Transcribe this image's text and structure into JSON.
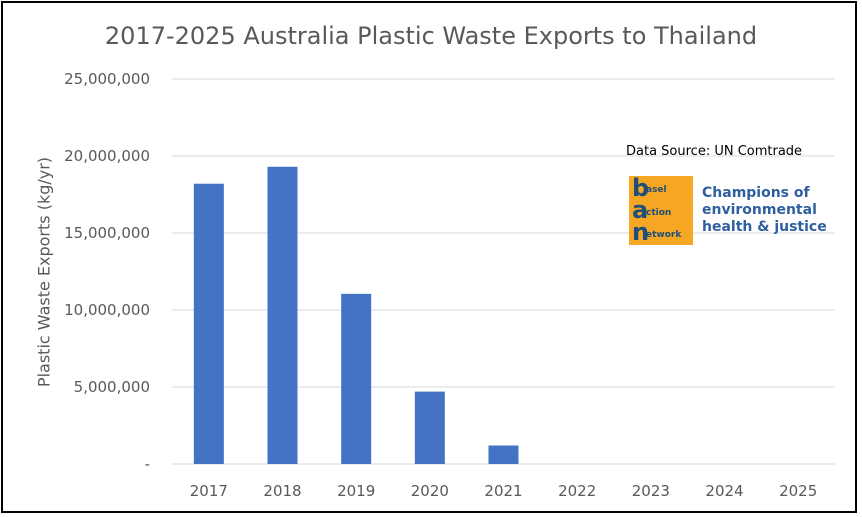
{
  "chart_data": {
    "type": "bar",
    "title": "2017-2025 Australia Plastic Waste Exports to Thailand",
    "ylabel": "Plastic Waste Exports (kg/yr)",
    "xlabel": "",
    "categories": [
      "2017",
      "2018",
      "2019",
      "2020",
      "2021",
      "2022",
      "2023",
      "2024",
      "2025"
    ],
    "values": [
      18200000,
      19300000,
      11050000,
      4700000,
      1200000,
      0,
      0,
      0,
      0
    ],
    "ylim": [
      0,
      25000000
    ],
    "yticks": [
      0,
      5000000,
      10000000,
      15000000,
      20000000,
      25000000
    ],
    "ytick_labels": [
      "-",
      "5,000,000",
      "10,000,000",
      "15,000,000",
      "20,000,000",
      "25,000,000"
    ],
    "grid": true,
    "bar_color": "#4472c4"
  },
  "annotation": {
    "source": "Data Source: UN Comtrade"
  },
  "logo": {
    "letters": [
      "b",
      "a",
      "n"
    ],
    "words": [
      "asel",
      "ction",
      "etwork"
    ],
    "tagline": [
      "Champions of",
      "environmental",
      "health & justice"
    ],
    "colors": {
      "background": "#f5a623",
      "text": "#1f4e79",
      "tagline": "#2e5f9e"
    }
  }
}
